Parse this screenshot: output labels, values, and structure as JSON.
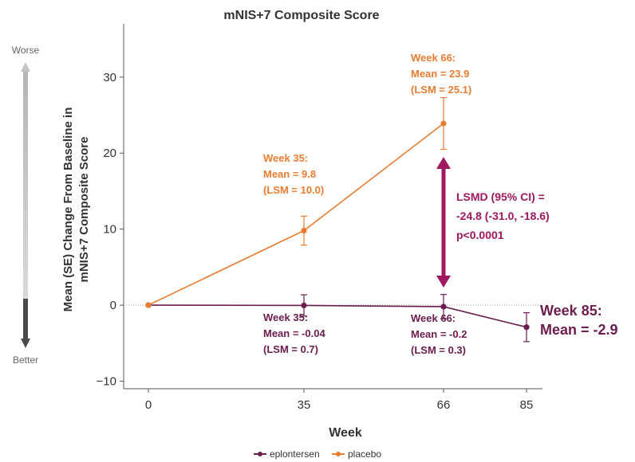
{
  "chart_data": {
    "type": "line",
    "title": "mNIS+7 Composite Score",
    "xlabel": "Week",
    "ylabel_lines": [
      "Mean (SE) Change From Baseline in",
      "mNIS+7 Composite Score"
    ],
    "x": [
      0,
      35,
      66,
      85
    ],
    "x_tick_labels": [
      "0",
      "35",
      "66",
      "85"
    ],
    "ylim": [
      -11,
      37
    ],
    "y_ticks": [
      -10,
      0,
      10,
      20,
      30
    ],
    "y_tick_labels": [
      "−10",
      "0",
      "10",
      "20",
      "30"
    ],
    "grid": false,
    "legend_position": "bottom",
    "direction_labels": {
      "top": "Worse",
      "bottom": "Better"
    },
    "series": [
      {
        "name": "eplontersen",
        "color": "#6b1d4e",
        "x": [
          0,
          35,
          66,
          85
        ],
        "y": [
          0,
          -0.04,
          -0.2,
          -2.9
        ],
        "se": [
          0,
          1.4,
          1.6,
          1.9
        ]
      },
      {
        "name": "placebo",
        "color": "#e87d32",
        "x": [
          0,
          35,
          66
        ],
        "y": [
          0,
          9.8,
          23.9
        ],
        "se": [
          0,
          1.9,
          3.4
        ]
      }
    ],
    "annotations": [
      {
        "series": "placebo",
        "lines": [
          "Week 66:",
          "Mean = 23.9",
          "(LSM = 25.1)"
        ]
      },
      {
        "series": "placebo",
        "lines": [
          "Week 35:",
          "Mean = 9.8",
          "(LSM = 10.0)"
        ]
      },
      {
        "series": "eplontersen",
        "lines": [
          "Week 35:",
          "Mean = -0.04",
          "(LSM = 0.7)"
        ]
      },
      {
        "series": "eplontersen",
        "lines": [
          "Week 66:",
          "Mean = -0.2",
          "(LSM = 0.3)"
        ]
      },
      {
        "series": "eplontersen",
        "lines": [
          "Week 85:",
          "Mean = -2.9"
        ]
      }
    ],
    "difference": {
      "x": 66,
      "y_from": 0,
      "y_to": 23.9,
      "color": "#a0185f",
      "lines": [
        "LSMD (95% CI) =",
        "-24.8 (-31.0, -18.6)",
        "p<0.0001"
      ]
    }
  }
}
